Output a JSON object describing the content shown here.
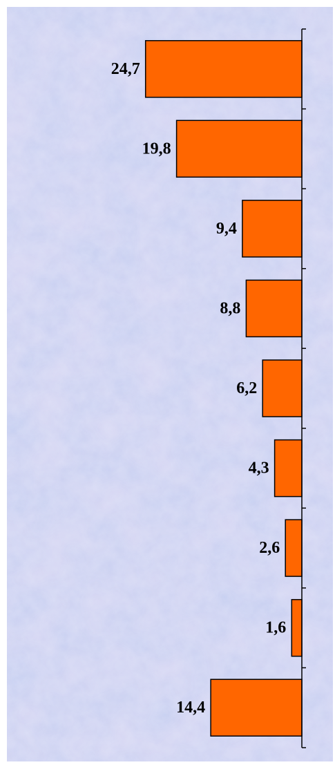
{
  "chart_data": {
    "type": "bar",
    "orientation": "horizontal",
    "values": [
      24.7,
      19.8,
      9.4,
      8.8,
      6.2,
      4.3,
      2.6,
      1.6,
      14.4
    ],
    "value_labels": [
      "24,7",
      "19,8",
      "9,4",
      "8,8",
      "6,2",
      "4,3",
      "2,6",
      "1,6",
      "14,4"
    ],
    "xlim": [
      0,
      25
    ],
    "grid": false,
    "legend": "none",
    "title": "",
    "xlabel": "",
    "ylabel": ""
  },
  "colors": {
    "bar_fill": "#ff6600",
    "bar_stroke": "#000000",
    "axis": "#000000",
    "background_base": "#c3cdf0",
    "background_tint_a": "#d8c6ea",
    "background_tint_b": "#b9dcf0"
  }
}
